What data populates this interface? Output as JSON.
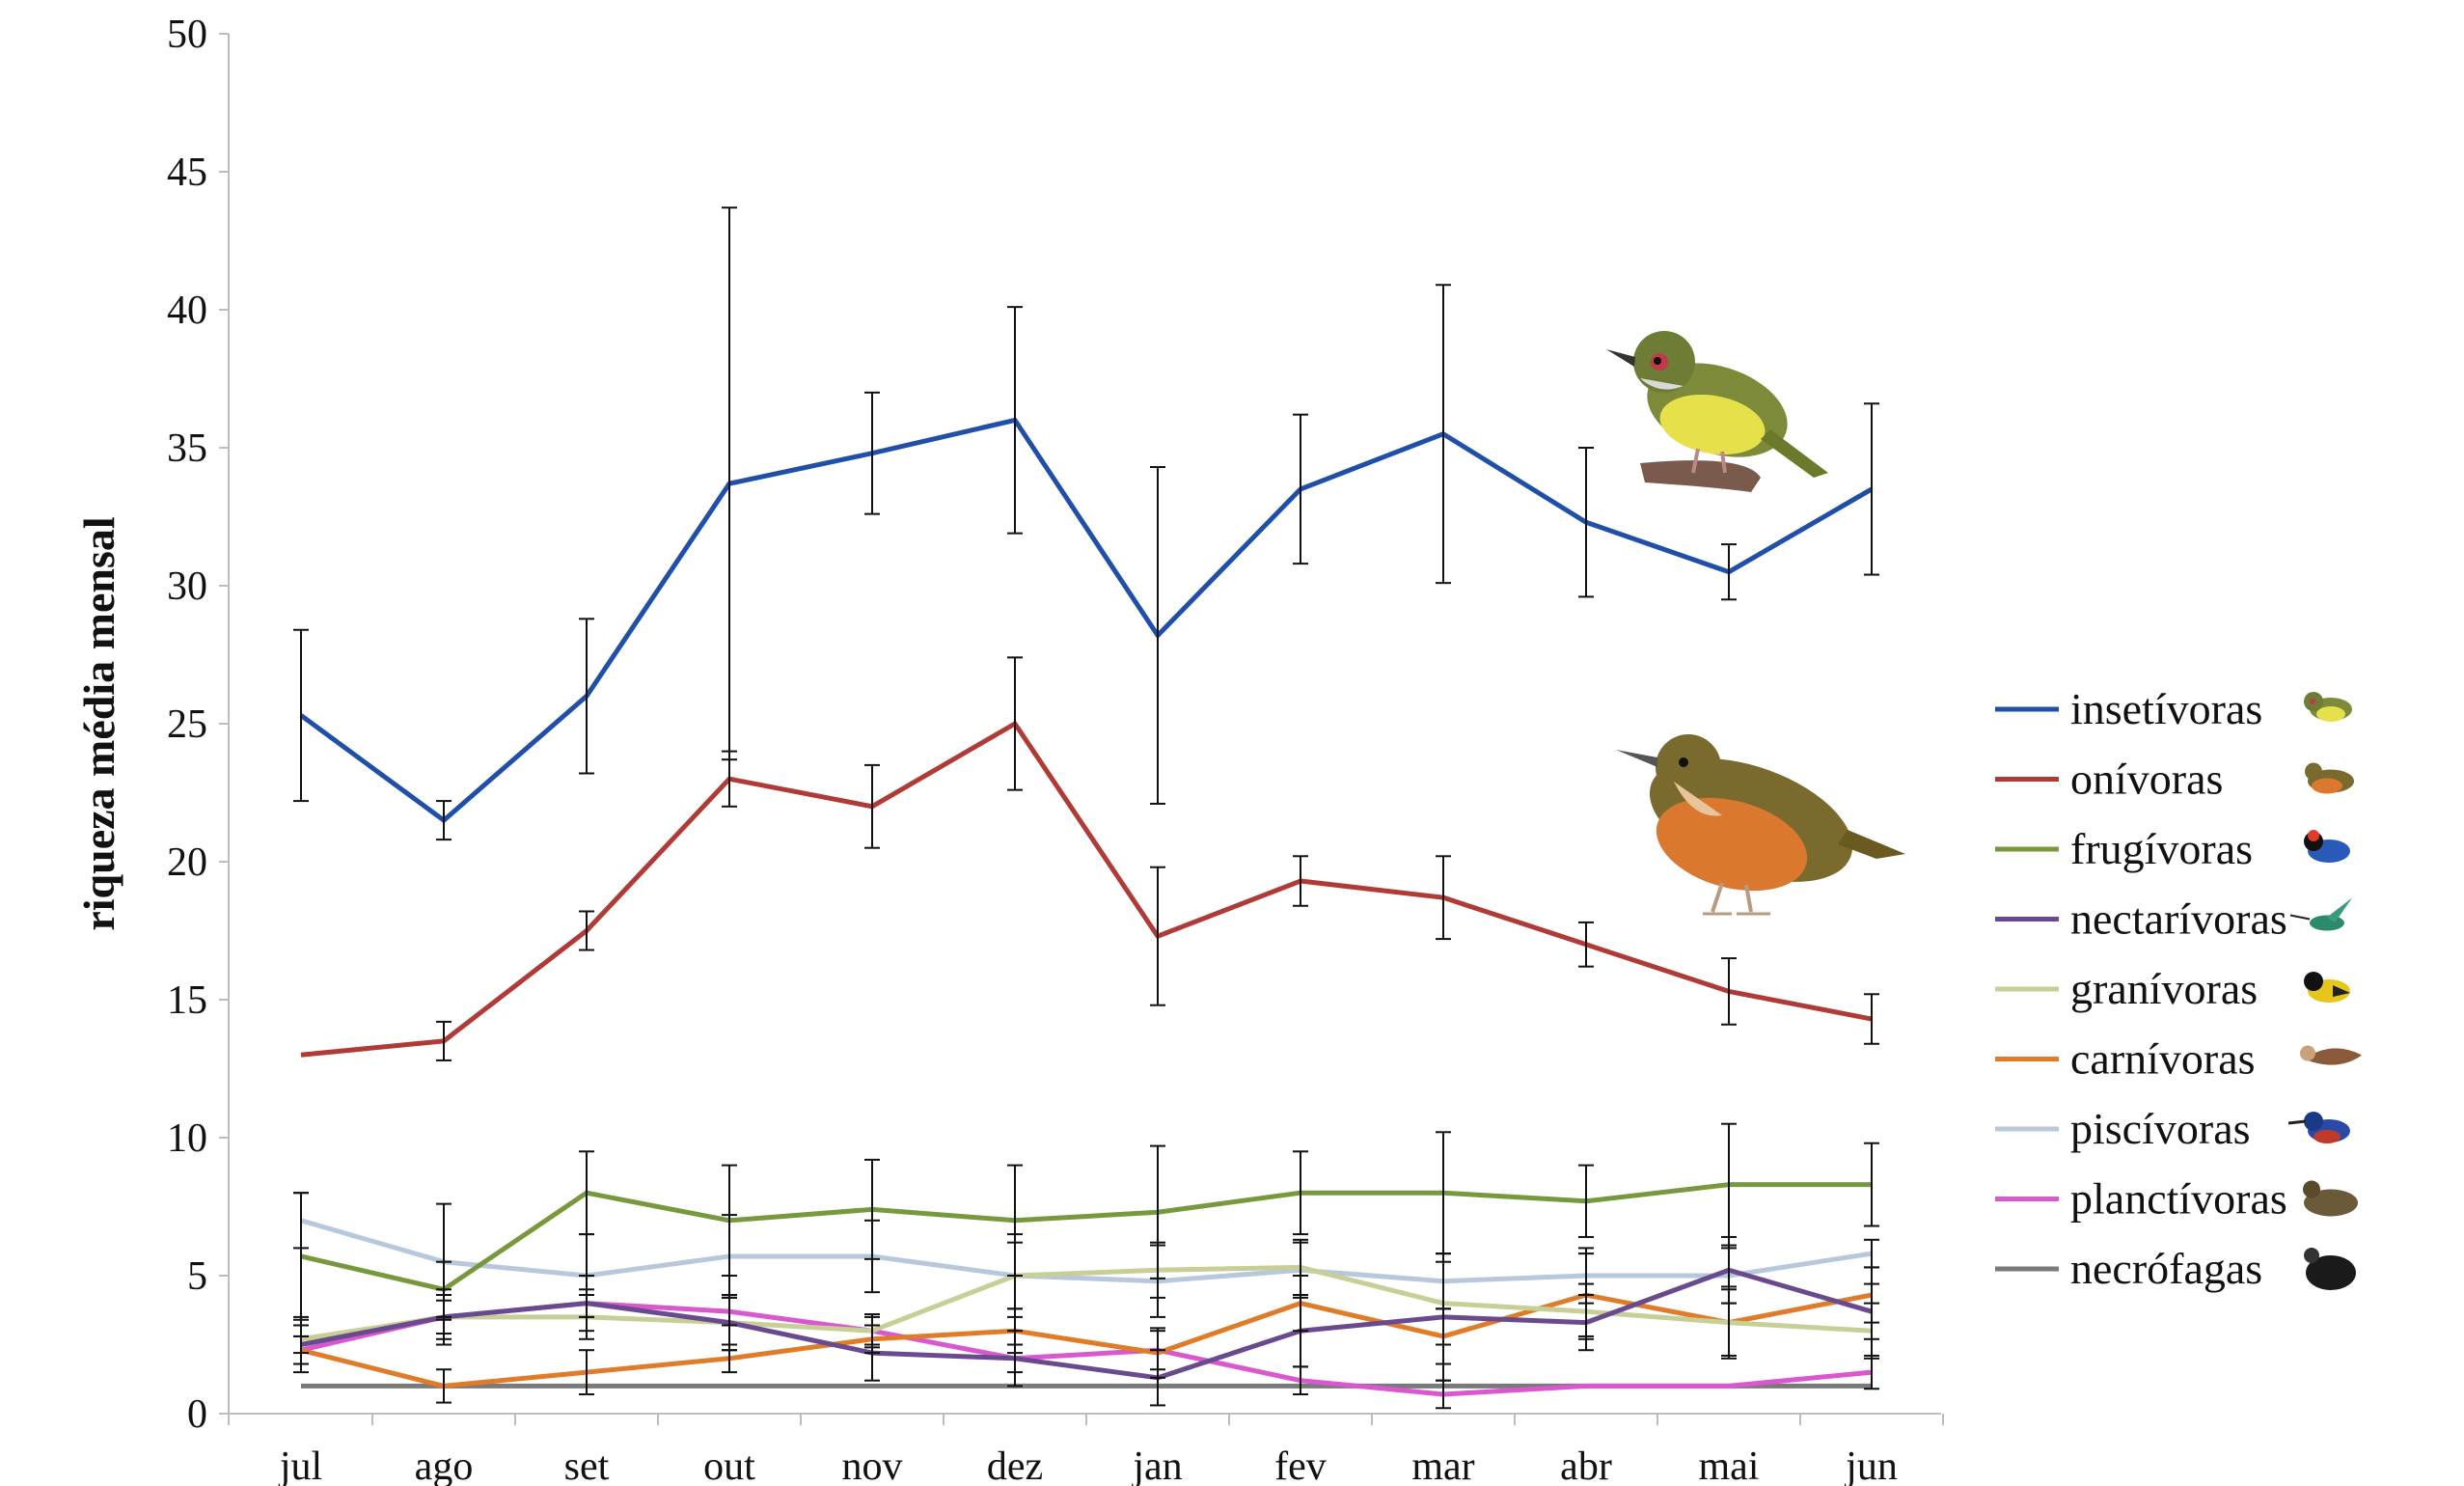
{
  "chart_data": {
    "type": "line",
    "title": "",
    "xlabel": "",
    "ylabel": "riqueza média mensal",
    "ylim": [
      0,
      50
    ],
    "yticks": [
      0,
      5,
      10,
      15,
      20,
      25,
      30,
      35,
      40,
      45,
      50
    ],
    "categories": [
      "jul",
      "ago",
      "set",
      "out",
      "nov",
      "dez",
      "jan",
      "fev",
      "mar",
      "abr",
      "mai",
      "jun"
    ],
    "legend_position": "right",
    "series": [
      {
        "name": "insetívoras",
        "color": "#1f4fa8",
        "icon": "small-green-yellow-bird-icon",
        "values": [
          25.3,
          21.5,
          26.0,
          33.7,
          34.8,
          36.0,
          28.2,
          33.5,
          35.5,
          32.3,
          30.5,
          33.5
        ],
        "err": [
          3.1,
          0.7,
          2.8,
          10.0,
          2.2,
          4.1,
          6.1,
          2.7,
          5.4,
          2.7,
          1.0,
          3.1
        ]
      },
      {
        "name": "onívoras",
        "color": "#b03a36",
        "icon": "thrush-icon",
        "values": [
          13.0,
          13.5,
          17.5,
          23.0,
          22.0,
          25.0,
          17.3,
          19.3,
          18.7,
          17.0,
          15.3,
          14.3
        ],
        "err": [
          0.0,
          0.7,
          0.7,
          1.0,
          1.5,
          2.4,
          2.5,
          0.9,
          1.5,
          0.8,
          1.2,
          0.9
        ]
      },
      {
        "name": "frugívoras",
        "color": "#77993c",
        "icon": "colorful-bird-icon",
        "values": [
          5.7,
          4.5,
          8.0,
          7.0,
          7.4,
          7.0,
          7.3,
          8.0,
          8.0,
          7.7,
          8.3,
          8.3
        ],
        "err": [
          2.3,
          1.0,
          1.5,
          2.0,
          1.8,
          2.0,
          2.4,
          1.5,
          2.2,
          1.3,
          2.2,
          1.5
        ]
      },
      {
        "name": "nectarívoras",
        "color": "#6a4a8e",
        "icon": "hummingbird-icon",
        "values": [
          2.5,
          3.5,
          4.0,
          3.3,
          2.2,
          2.0,
          1.3,
          3.0,
          3.5,
          3.3,
          5.2,
          3.7
        ],
        "err": [
          1.0,
          1.0,
          1.0,
          1.0,
          1.0,
          1.0,
          1.0,
          1.3,
          2.3,
          1.0,
          1.2,
          1.0
        ]
      },
      {
        "name": "granívoras",
        "color": "#c8cf96",
        "icon": "yellow-black-bird-icon",
        "values": [
          2.7,
          3.5,
          3.5,
          3.3,
          3.0,
          5.0,
          5.2,
          5.3,
          4.0,
          3.7,
          3.3,
          3.0
        ],
        "err": [
          0.5,
          0.8,
          0.8,
          1.0,
          0.6,
          1.2,
          1.0,
          1.0,
          1.5,
          1.0,
          1.2,
          1.0
        ]
      },
      {
        "name": "carnívoras",
        "color": "#e07b28",
        "icon": "hawk-icon",
        "values": [
          2.3,
          1.0,
          1.5,
          2.0,
          2.7,
          3.0,
          2.2,
          4.0,
          2.8,
          4.3,
          3.3,
          4.3
        ],
        "err": [
          0.5,
          0.6,
          0.8,
          0.5,
          0.5,
          0.8,
          0.9,
          1.0,
          1.0,
          1.5,
          1.3,
          1.0
        ]
      },
      {
        "name": "piscívoras",
        "color": "#b7c8dd",
        "icon": "kingfisher-icon",
        "values": [
          7.0,
          5.5,
          5.0,
          5.7,
          5.7,
          5.0,
          4.8,
          5.2,
          4.8,
          5.0,
          5.0,
          5.8
        ],
        "err": [
          1.0,
          2.1,
          1.5,
          1.5,
          1.3,
          1.5,
          1.3,
          1.0,
          1.0,
          1.0,
          1.0,
          0.5
        ]
      },
      {
        "name": "planctívoras",
        "color": "#d957cf",
        "icon": "duck-icon",
        "values": [
          2.3,
          3.5,
          4.0,
          3.7,
          3.0,
          2.0,
          2.3,
          1.2,
          0.7,
          1.0,
          1.0,
          1.5
        ],
        "err": [
          0.5,
          0.6,
          0.5,
          0.5,
          0.5,
          0.5,
          0.7,
          0.5,
          0.5,
          0.0,
          0.0,
          0.6
        ]
      },
      {
        "name": "necrófagas",
        "color": "#7a7a7a",
        "icon": "vulture-icon",
        "values": [
          1.0,
          1.0,
          1.0,
          1.0,
          1.0,
          1.0,
          1.0,
          1.0,
          1.0,
          1.0,
          1.0,
          1.0
        ],
        "err": [
          0.0,
          0.0,
          0.0,
          0.0,
          0.0,
          0.0,
          0.0,
          0.0,
          0.0,
          0.0,
          0.0,
          0.0
        ]
      }
    ],
    "illustrations": [
      "small-green-yellow-bird-icon",
      "thrush-icon"
    ]
  }
}
